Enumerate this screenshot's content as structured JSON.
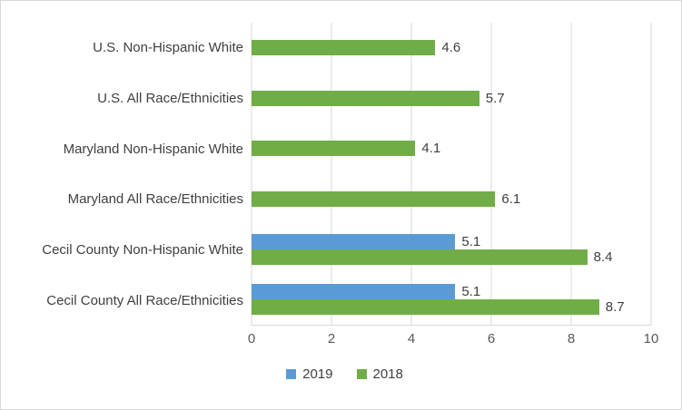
{
  "chart_data": {
    "type": "bar",
    "orientation": "horizontal",
    "title": "",
    "xlabel": "",
    "ylabel": "",
    "categories": [
      "U.S. Non-Hispanic White",
      "U.S. All Race/Ethnicities",
      "Maryland Non-Hispanic White",
      "Maryland All Race/Ethnicities",
      "Cecil County Non-Hispanic White",
      "Cecil County All Race/Ethnicities"
    ],
    "series": [
      {
        "name": "2019",
        "color": "#5B9BD5",
        "values": [
          null,
          null,
          null,
          null,
          5.1,
          5.1
        ]
      },
      {
        "name": "2018",
        "color": "#70AD47",
        "values": [
          4.6,
          5.7,
          4.1,
          6.1,
          8.4,
          8.7
        ]
      }
    ],
    "data_labels": {
      "2019": [
        null,
        null,
        null,
        null,
        "5.1",
        "5.1"
      ],
      "2018": [
        "4.6",
        "5.7",
        "4.1",
        "6.1",
        "8.4",
        "8.7"
      ]
    },
    "xlim": [
      0,
      10
    ],
    "xticks": [
      0,
      2,
      4,
      6,
      8,
      10
    ],
    "grid": "vertical",
    "legend_position": "bottom",
    "legend_entries": [
      "2019",
      "2018"
    ]
  },
  "colors": {
    "series_2019": "#5B9BD5",
    "series_2018": "#70AD47",
    "gridline": "#D9D9D9",
    "chart_border": "#D9D9D9",
    "label_text": "#404040",
    "tick_text": "#595959"
  }
}
